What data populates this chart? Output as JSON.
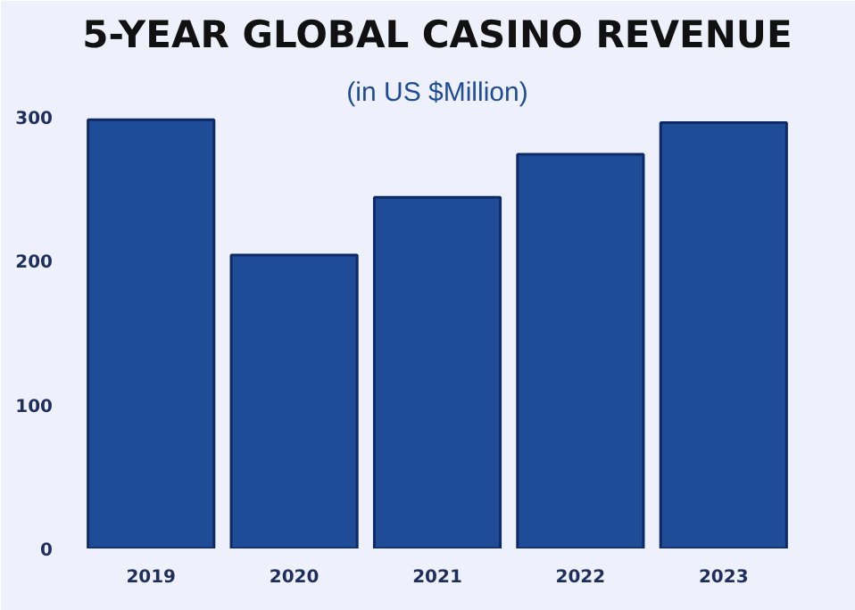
{
  "chart_data": {
    "type": "bar",
    "title": "5-YEAR GLOBAL CASINO REVENUE",
    "subtitle": "(in US $Million)",
    "categories": [
      "2019",
      "2020",
      "2021",
      "2022",
      "2023"
    ],
    "values": [
      298,
      204,
      244,
      274,
      296
    ],
    "color": "#1f4c96",
    "ylim": [
      0,
      300
    ],
    "yticks": [
      0,
      100,
      200,
      300
    ],
    "grid": false
  }
}
